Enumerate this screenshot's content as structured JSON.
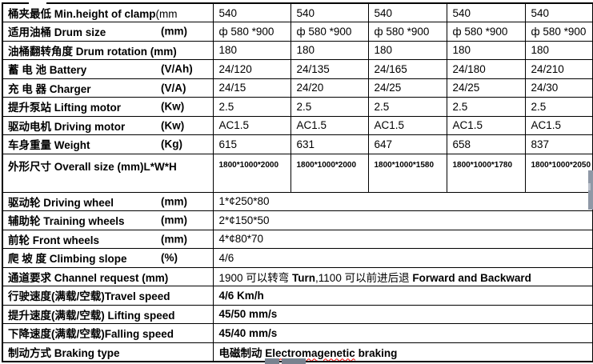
{
  "colors": {
    "border": "#000000",
    "text": "#000000",
    "squiggle": "#ff0000",
    "scrollbar_vertical": "#8f98a6",
    "scrollbar_horizontal": "#79828f"
  },
  "table": {
    "rows": [
      {
        "label_segs": [
          {
            "t": "桶夹最低 Min.height of clamp",
            "b": true
          },
          {
            "t": "(mm",
            "b": false
          }
        ],
        "unit": "",
        "values": [
          "540",
          "540",
          "540",
          "540",
          "540"
        ]
      },
      {
        "label_segs": [
          {
            "t": "适用油桶 Drum size",
            "b": true
          }
        ],
        "unit": "(mm)",
        "values": [
          "ф 580 *900",
          "ф 580 *900",
          "ф 580 *900",
          "ф 580 *900",
          "ф 580 *900"
        ]
      },
      {
        "label_segs": [
          {
            "t": "油桶翻转角度 Drum rotation (mm)",
            "b": true
          }
        ],
        "unit": "",
        "values": [
          "180",
          "180",
          "180",
          "180",
          "180"
        ]
      },
      {
        "label_segs": [
          {
            "t": "蓄 电 池 Battery",
            "b": true
          }
        ],
        "unit": "(V/Ah)",
        "values": [
          "24/120",
          "24/135",
          "24/165",
          "24/180",
          "24/210"
        ]
      },
      {
        "label_segs": [
          {
            "t": "充 电 器 Charger",
            "b": true
          }
        ],
        "unit": "(V/A)",
        "values": [
          "24/15",
          "24/20",
          "24/25",
          "24/25",
          "24/30"
        ]
      },
      {
        "label_segs": [
          {
            "t": "提升泵站 Lifting motor",
            "b": true
          }
        ],
        "unit": "(Kw)",
        "values": [
          "2.5",
          "2.5",
          "2.5",
          "2.5",
          "2.5"
        ]
      },
      {
        "label_segs": [
          {
            "t": "驱动电机 Driving motor",
            "b": true
          }
        ],
        "unit": "(Kw)",
        "values": [
          "AC1.5",
          "AC1.5",
          "AC1.5",
          "AC1.5",
          "AC1.5"
        ]
      },
      {
        "label_segs": [
          {
            "t": "车身重量 Weight",
            "b": true
          }
        ],
        "unit": "(Kg)",
        "values": [
          "615",
          "631",
          "647",
          "658",
          "837"
        ]
      },
      {
        "label_segs": [
          {
            "t": "外形尺寸 Overall size (mm)L*W*H",
            "b": true
          }
        ],
        "unit": "",
        "values": [
          "1800*1000*2000",
          "1800*1000*2000",
          "1800*1000*1580",
          "1800*1000*1780",
          "1800*1000*2050"
        ],
        "small": true,
        "tall": true
      },
      {
        "label_segs": [
          {
            "t": "驱动轮  Driving wheel",
            "b": true
          }
        ],
        "unit": "(mm)",
        "value_segs": [
          {
            "t": "1*¢250*80",
            "b": false
          }
        ]
      },
      {
        "label_segs": [
          {
            "t": "辅助轮  Training wheels",
            "b": true
          }
        ],
        "unit": "(mm)",
        "value_segs": [
          {
            "t": "2*¢150*50",
            "b": false
          }
        ]
      },
      {
        "label_segs": [
          {
            "t": "前轮 Front wheels",
            "b": true
          }
        ],
        "unit": "(mm)",
        "value_segs": [
          {
            "t": "4*¢80*70",
            "b": false
          }
        ]
      },
      {
        "label_segs": [
          {
            "t": "爬 坡 度 Climbing slope",
            "b": true
          }
        ],
        "unit": "(%)",
        "value_segs": [
          {
            "t": "4/6",
            "b": false
          }
        ]
      },
      {
        "label_segs": [
          {
            "t": "通道要求  Channel request (mm)",
            "b": true
          }
        ],
        "unit": "",
        "value_segs": [
          {
            "t": "1900 可以转弯 ",
            "b": false
          },
          {
            "t": "Turn",
            "b": true
          },
          {
            "t": ",1100 可以前进后退  ",
            "b": false
          },
          {
            "t": "Forward and Backward",
            "b": true
          }
        ]
      },
      {
        "label_segs": [
          {
            "t": "行驶速度(满载/空载)Travel speed",
            "b": true
          }
        ],
        "unit": "",
        "value_segs": [
          {
            "t": "4/6 Km/h",
            "b": true
          }
        ]
      },
      {
        "label_segs": [
          {
            "t": "提升速度(满载/空载) Lifting speed",
            "b": true
          }
        ],
        "unit": "",
        "value_segs": [
          {
            "t": "45/50 mm/s",
            "b": true
          }
        ]
      },
      {
        "label_segs": [
          {
            "t": "下降速度(满载/空载)Falling speed",
            "b": true
          }
        ],
        "unit": "",
        "value_segs": [
          {
            "t": "45/40 mm/s",
            "b": true
          }
        ]
      },
      {
        "label_segs": [
          {
            "t": "制动方式 Braking type",
            "b": true
          }
        ],
        "unit": "",
        "value_segs": [
          {
            "t": "电磁制动 ",
            "b": true
          },
          {
            "t": "Electromagenetic",
            "b": true,
            "sq": true
          },
          {
            "t": " braking",
            "b": true
          }
        ]
      }
    ]
  }
}
